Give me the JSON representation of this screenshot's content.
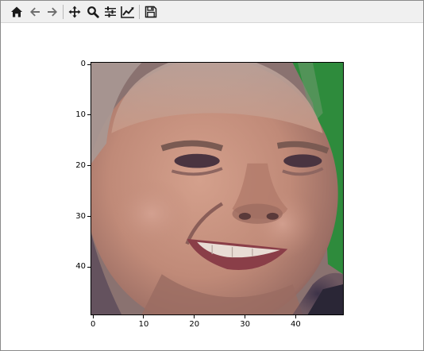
{
  "toolbar": {
    "tools": [
      {
        "name": "home-icon",
        "label": "Home"
      },
      {
        "name": "back-arrow-icon",
        "label": "Back"
      },
      {
        "name": "forward-arrow-icon",
        "label": "Forward"
      },
      {
        "name": "pan-icon",
        "label": "Pan"
      },
      {
        "name": "zoom-icon",
        "label": "Zoom"
      },
      {
        "name": "subplots-config-icon",
        "label": "Configure subplots"
      },
      {
        "name": "edit-axis-icon",
        "label": "Edit axis"
      },
      {
        "name": "save-icon",
        "label": "Save"
      }
    ]
  },
  "axes": {
    "x_ticks": [
      "0",
      "10",
      "20",
      "30",
      "40"
    ],
    "y_ticks": [
      "0",
      "10",
      "20",
      "30",
      "40"
    ],
    "xlim": [
      -0.5,
      49.5
    ],
    "ylim": [
      49.5,
      -0.5
    ]
  },
  "image": {
    "description_label": "face image",
    "skin_color": "#c08a78",
    "background_color": "#2e8b3c"
  }
}
